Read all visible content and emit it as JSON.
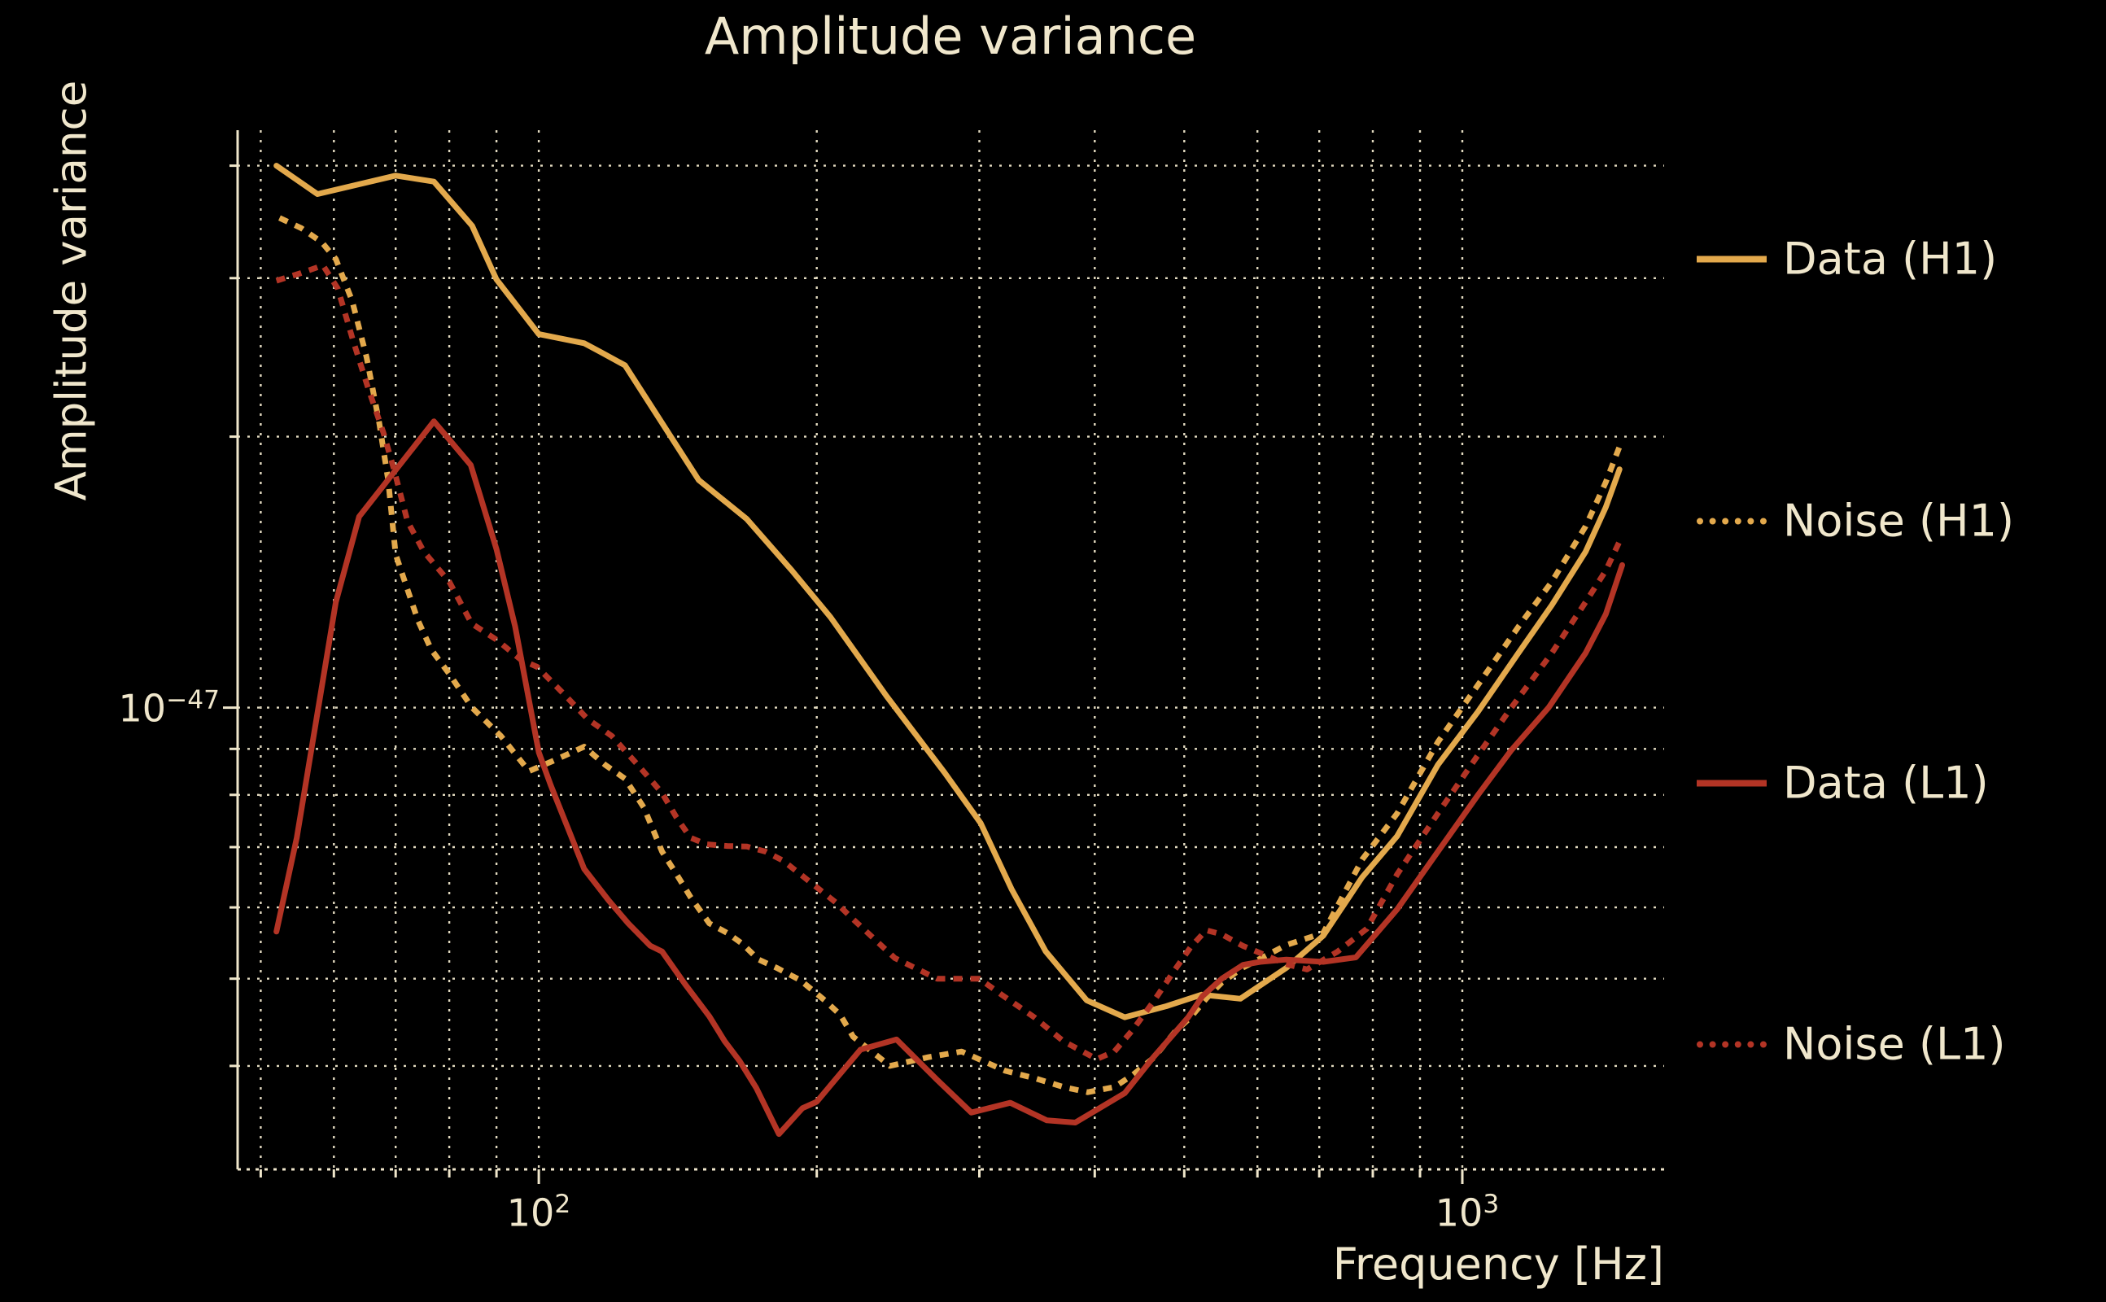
{
  "title": "Amplitude variance",
  "axes": {
    "xlabel": "Frequency [Hz]",
    "ylabel": "Amplitude variance",
    "x_ticks": [
      {
        "base": "10",
        "exp": "2"
      },
      {
        "base": "10",
        "exp": "3"
      }
    ],
    "y_ticks": [
      {
        "base": "10",
        "exp": "−47"
      }
    ]
  },
  "colors": {
    "background": "#000000",
    "text": "#F0E7CC",
    "grid": "#EFE6CB",
    "gold": "#E3A94C",
    "red": "#B33425"
  },
  "chart_data": {
    "type": "line",
    "title": "Amplitude variance",
    "xlabel": "Frequency [Hz]",
    "ylabel": "Amplitude variance",
    "x_scale": "log",
    "y_scale": "log",
    "x_range_hz": [
      47.2,
      1654
    ],
    "y_range": [
      3.07e-48,
      4.38e-47
    ],
    "grid": true,
    "grid_style": "dotted",
    "legend_position": "right",
    "x_gridlines_hz": [
      50,
      60,
      70,
      80,
      90,
      100,
      200,
      300,
      400,
      500,
      600,
      700,
      800,
      900,
      1000
    ],
    "y_gridlines": [
      4e-48,
      5e-48,
      6e-48,
      7e-48,
      8e-48,
      9e-48,
      1e-47,
      2e-47,
      3e-47,
      4e-47
    ],
    "x_major_ticks_hz": [
      100,
      1000
    ],
    "y_major_ticks": [
      1e-47
    ],
    "series": [
      {
        "name": "Data (H1)",
        "color": "#E3A94C",
        "style": "solid",
        "points": [
          [
            52,
            4e-47
          ],
          [
            57.6,
            3.72e-47
          ],
          [
            70,
            3.9e-47
          ],
          [
            77,
            3.84e-47
          ],
          [
            84.7,
            3.43e-47
          ],
          [
            90,
            2.99e-47
          ],
          [
            100,
            2.6e-47
          ],
          [
            112,
            2.54e-47
          ],
          [
            117,
            2.48e-47
          ],
          [
            124,
            2.4e-47
          ],
          [
            149,
            1.79e-47
          ],
          [
            168,
            1.62e-47
          ],
          [
            188,
            1.42e-47
          ],
          [
            207,
            1.26e-47
          ],
          [
            238,
            1.03e-47
          ],
          [
            275,
            8.47e-48
          ],
          [
            301,
            7.44e-48
          ],
          [
            325,
            6.29e-48
          ],
          [
            354,
            5.36e-48
          ],
          [
            392,
            4.73e-48
          ],
          [
            431,
            4.53e-48
          ],
          [
            478,
            4.66e-48
          ],
          [
            522,
            4.8e-48
          ],
          [
            575,
            4.75e-48
          ],
          [
            645,
            5.14e-48
          ],
          [
            707,
            5.58e-48
          ],
          [
            779,
            6.48e-48
          ],
          [
            850,
            7.2e-48
          ],
          [
            941,
            8.64e-48
          ],
          [
            1040,
            9.9e-48
          ],
          [
            1150,
            1.15e-47
          ],
          [
            1250,
            1.3e-47
          ],
          [
            1360,
            1.49e-47
          ],
          [
            1430,
            1.67e-47
          ],
          [
            1480,
            1.84e-47
          ]
        ]
      },
      {
        "name": "Noise (H1)",
        "color": "#E3A94C",
        "style": "dotted",
        "points": [
          [
            52.4,
            3.5e-47
          ],
          [
            55.3,
            3.41e-47
          ],
          [
            58.2,
            3.29e-47
          ],
          [
            60.3,
            3.15e-47
          ],
          [
            62.8,
            2.83e-47
          ],
          [
            65.1,
            2.45e-47
          ],
          [
            67.2,
            2.07e-47
          ],
          [
            68.7,
            1.79e-47
          ],
          [
            70,
            1.48e-47
          ],
          [
            74,
            1.25e-47
          ],
          [
            76.5,
            1.16e-47
          ],
          [
            80,
            1.09e-47
          ],
          [
            84.7,
            1e-47
          ],
          [
            91,
            9.3e-48
          ],
          [
            97.6,
            8.5e-48
          ],
          [
            104,
            8.74e-48
          ],
          [
            112,
            9.05e-48
          ],
          [
            118,
            8.64e-48
          ],
          [
            124,
            8.34e-48
          ],
          [
            130,
            7.74e-48
          ],
          [
            136,
            6.92e-48
          ],
          [
            141,
            6.53e-48
          ],
          [
            146,
            6.16e-48
          ],
          [
            153,
            5.76e-48
          ],
          [
            160,
            5.62e-48
          ],
          [
            166,
            5.47e-48
          ],
          [
            173,
            5.25e-48
          ],
          [
            181,
            5.14e-48
          ],
          [
            192,
            4.98e-48
          ],
          [
            204,
            4.73e-48
          ],
          [
            212,
            4.56e-48
          ],
          [
            219,
            4.31e-48
          ],
          [
            240,
            4e-48
          ],
          [
            264,
            4.09e-48
          ],
          [
            287,
            4.15e-48
          ],
          [
            320,
            3.95e-48
          ],
          [
            346,
            3.87e-48
          ],
          [
            370,
            3.79e-48
          ],
          [
            393,
            3.74e-48
          ],
          [
            420,
            3.79e-48
          ],
          [
            440,
            3.91e-48
          ],
          [
            464,
            4.09e-48
          ],
          [
            488,
            4.36e-48
          ],
          [
            508,
            4.53e-48
          ],
          [
            529,
            4.76e-48
          ],
          [
            549,
            4.95e-48
          ],
          [
            578,
            5.14e-48
          ],
          [
            645,
            5.45e-48
          ],
          [
            707,
            5.62e-48
          ],
          [
            779,
            6.78e-48
          ],
          [
            850,
            7.63e-48
          ],
          [
            941,
            9.16e-48
          ],
          [
            1040,
            1.06e-47
          ],
          [
            1150,
            1.23e-47
          ],
          [
            1250,
            1.38e-47
          ],
          [
            1360,
            1.59e-47
          ],
          [
            1430,
            1.78e-47
          ],
          [
            1480,
            1.95e-47
          ]
        ]
      },
      {
        "name": "Data (L1)",
        "color": "#B33425",
        "style": "solid",
        "points": [
          [
            52,
            5.64e-48
          ],
          [
            54.7,
            7.17e-48
          ],
          [
            60.3,
            1.31e-47
          ],
          [
            63.9,
            1.63e-47
          ],
          [
            77,
            2.08e-47
          ],
          [
            84.4,
            1.86e-47
          ],
          [
            90,
            1.5e-47
          ],
          [
            94.3,
            1.23e-47
          ],
          [
            100,
            8.92e-48
          ],
          [
            103,
            8.21e-48
          ],
          [
            112,
            6.62e-48
          ],
          [
            119,
            6.11e-48
          ],
          [
            125,
            5.76e-48
          ],
          [
            132,
            5.44e-48
          ],
          [
            136,
            5.36e-48
          ],
          [
            144,
            4.93e-48
          ],
          [
            153,
            4.54e-48
          ],
          [
            159,
            4.26e-48
          ],
          [
            165,
            4.05e-48
          ],
          [
            172,
            3.78e-48
          ],
          [
            182,
            3.36e-48
          ],
          [
            193,
            3.59e-48
          ],
          [
            200,
            3.65e-48
          ],
          [
            223,
            4.17e-48
          ],
          [
            244,
            4.28e-48
          ],
          [
            270,
            3.86e-48
          ],
          [
            294,
            3.55e-48
          ],
          [
            324,
            3.64e-48
          ],
          [
            355,
            3.48e-48
          ],
          [
            381,
            3.46e-48
          ],
          [
            431,
            3.73e-48
          ],
          [
            463,
            4.09e-48
          ],
          [
            505,
            4.53e-48
          ],
          [
            523,
            4.78e-48
          ],
          [
            549,
            5e-48
          ],
          [
            579,
            5.18e-48
          ],
          [
            604,
            5.22e-48
          ],
          [
            645,
            5.25e-48
          ],
          [
            707,
            5.22e-48
          ],
          [
            767,
            5.28e-48
          ],
          [
            850,
            5.97e-48
          ],
          [
            941,
            6.92e-48
          ],
          [
            1040,
            8e-48
          ],
          [
            1130,
            8.97e-48
          ],
          [
            1240,
            1e-47
          ],
          [
            1360,
            1.15e-47
          ],
          [
            1430,
            1.27e-47
          ],
          [
            1490,
            1.44e-47
          ]
        ]
      },
      {
        "name": "Noise (L1)",
        "color": "#B33425",
        "style": "dotted",
        "points": [
          [
            52,
            2.98e-47
          ],
          [
            55.3,
            3.04e-47
          ],
          [
            58.4,
            3.1e-47
          ],
          [
            60.6,
            2.92e-47
          ],
          [
            63,
            2.55e-47
          ],
          [
            65.4,
            2.26e-47
          ],
          [
            67.9,
            2.02e-47
          ],
          [
            69.7,
            1.84e-47
          ],
          [
            72.1,
            1.61e-47
          ],
          [
            75.1,
            1.49e-47
          ],
          [
            80,
            1.38e-47
          ],
          [
            84.6,
            1.24e-47
          ],
          [
            90,
            1.19e-47
          ],
          [
            95.7,
            1.13e-47
          ],
          [
            99.6,
            1.11e-47
          ],
          [
            107,
            1.03e-47
          ],
          [
            113,
            9.71e-48
          ],
          [
            120,
            9.3e-48
          ],
          [
            128,
            8.64e-48
          ],
          [
            136,
            8.04e-48
          ],
          [
            141,
            7.55e-48
          ],
          [
            146,
            7.17e-48
          ],
          [
            152,
            7.05e-48
          ],
          [
            160,
            7.02e-48
          ],
          [
            168,
            7.01e-48
          ],
          [
            176,
            6.92e-48
          ],
          [
            184,
            6.76e-48
          ],
          [
            192,
            6.53e-48
          ],
          [
            201,
            6.29e-48
          ],
          [
            210,
            6.07e-48
          ],
          [
            219,
            5.82e-48
          ],
          [
            243,
            5.27e-48
          ],
          [
            270,
            5e-48
          ],
          [
            300,
            5e-48
          ],
          [
            317,
            4.8e-48
          ],
          [
            344,
            4.53e-48
          ],
          [
            370,
            4.26e-48
          ],
          [
            402,
            4.07e-48
          ],
          [
            420,
            4.15e-48
          ],
          [
            440,
            4.39e-48
          ],
          [
            464,
            4.73e-48
          ],
          [
            488,
            5.11e-48
          ],
          [
            508,
            5.42e-48
          ],
          [
            528,
            5.66e-48
          ],
          [
            549,
            5.6e-48
          ],
          [
            578,
            5.44e-48
          ],
          [
            604,
            5.34e-48
          ],
          [
            644,
            5.19e-48
          ],
          [
            679,
            5.12e-48
          ],
          [
            733,
            5.36e-48
          ],
          [
            788,
            5.68e-48
          ],
          [
            850,
            6.53e-48
          ],
          [
            941,
            7.63e-48
          ],
          [
            1040,
            8.86e-48
          ],
          [
            1130,
            1e-47
          ],
          [
            1250,
            1.15e-47
          ],
          [
            1360,
            1.31e-47
          ],
          [
            1430,
            1.42e-47
          ],
          [
            1480,
            1.53e-47
          ]
        ]
      }
    ]
  }
}
